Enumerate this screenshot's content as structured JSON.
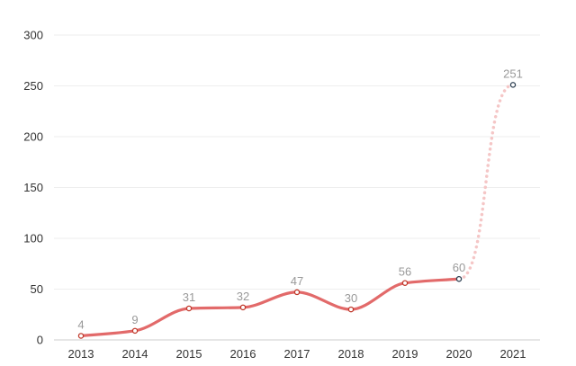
{
  "chart_data": {
    "type": "line",
    "title": "",
    "xlabel": "",
    "ylabel": "",
    "categories": [
      "2013",
      "2014",
      "2015",
      "2016",
      "2017",
      "2018",
      "2019",
      "2020",
      "2021"
    ],
    "series": [
      {
        "values": [
          4,
          9,
          31,
          32,
          47,
          30,
          56,
          60,
          251
        ],
        "data_labels": [
          "4",
          "9",
          "31",
          "32",
          "47",
          "30",
          "56",
          "60",
          "251"
        ],
        "solid_until_index": 7,
        "projected_from_index": 7
      }
    ],
    "y_ticks": [
      "0",
      "50",
      "100",
      "150",
      "200",
      "250",
      "300"
    ],
    "ylim": [
      0,
      300
    ],
    "grid": true,
    "legend": "none",
    "colors": {
      "line": "#e26a6a",
      "projected_line": "#f5c6c6",
      "marker_fill": "#ffffff",
      "marker_stroke": "#c0392b",
      "last_marker_stroke": "#2c3e50",
      "grid": "#eeeeee",
      "axis": "#cccccc",
      "tick_text": "#333333",
      "label_text": "#999999"
    }
  }
}
